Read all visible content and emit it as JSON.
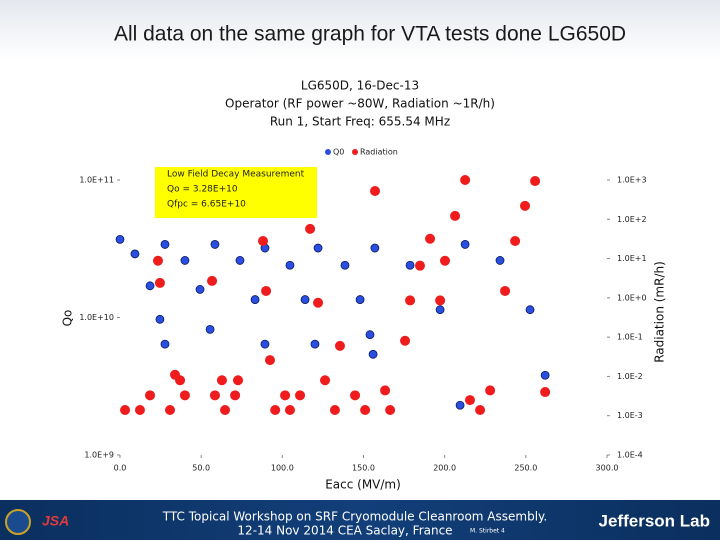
{
  "slide_title": "All data on the same graph for VTA tests done  LG650D",
  "footer": {
    "lines": [
      "TTC Topical Workshop on SRF Cryomodule Cleanroom Assembly.",
      "12-14 Nov 2014 CEA Saclay, France"
    ],
    "author": "M. Stirbet 4",
    "logo": "Jefferson Lab"
  },
  "chart_data": {
    "type": "scatter",
    "title": [
      "LG650D, 16-Dec-13",
      "Operator (RF power ~80W, Radiation ~1R/h)",
      "Run 1, Start Freq: 655.54 MHz"
    ],
    "x_label": "Eacc (MV/m)",
    "y_label": "Qo",
    "y2_label": "Radiation (mR/h)",
    "annotation": [
      "Low Field Decay Measurement",
      "Qo = 3.28E+10",
      "Qfpc = 6.65E+10"
    ],
    "legend": "top",
    "ylog": true,
    "y2log": true,
    "xlim": [
      0,
      300
    ],
    "xticks": [
      {
        "value": 0,
        "label": "0.0"
      },
      {
        "value": 50,
        "label": "50.0"
      },
      {
        "value": 100,
        "label": "100.0"
      },
      {
        "value": 150,
        "label": "150.0"
      },
      {
        "value": 200,
        "label": "200.0"
      },
      {
        "value": 250,
        "label": "250.0"
      },
      {
        "value": 300,
        "label": "300.0"
      }
    ],
    "ylim": [
      1000000000.0,
      100000000000.0
    ],
    "yticks": [
      {
        "value": 1000000000.0,
        "label": "1.0E+9"
      },
      {
        "value": 10000000000.0,
        "label": "1.0E+10"
      },
      {
        "value": 100000000000.0,
        "label": "1.0E+11"
      }
    ],
    "y2lim": [
      0.0001,
      1000
    ],
    "y2ticks": [
      {
        "value": 0.0001,
        "label": "1.0E-4"
      },
      {
        "value": 0.001,
        "label": "1.0E-3"
      },
      {
        "value": 0.01,
        "label": "1.0E-2"
      },
      {
        "value": 0.1,
        "label": "1.0E-1"
      },
      {
        "value": 1,
        "label": "1.0E+0"
      },
      {
        "value": 10,
        "label": "1.0E+1"
      },
      {
        "value": 100,
        "label": "1.0E+2"
      },
      {
        "value": 1000,
        "label": "1.0E+3"
      }
    ],
    "series": [
      {
        "name": "Q0",
        "color": "#2a4fe0",
        "axis": "y",
        "x": [
          0,
          9.2,
          18.5,
          24.6,
          27.7,
          27.7,
          40,
          49.3,
          55.5,
          58.5,
          73.9,
          83.2,
          89.3,
          89.3,
          104.7,
          114,
          120.1,
          122,
          138.6,
          147.9,
          154,
          157,
          178.7,
          197.2,
          209.5,
          212.6,
          234.1,
          252.6,
          261.9,
          155.9
        ],
        "values": [
          37000000000.0,
          29000000000.0,
          17000000000.0,
          9700000000.0,
          6400000000.0,
          34000000000.0,
          26000000000.0,
          16000000000.0,
          8200000000.0,
          34000000000.0,
          26000000000.0,
          13500000000.0,
          6400000000.0,
          32000000000.0,
          24000000000.0,
          13500000000.0,
          6400000000.0,
          32000000000.0,
          24000000000.0,
          13500000000.0,
          7500000000.0,
          32000000000.0,
          24000000000.0,
          11400000000.0,
          2300000000.0,
          34000000000.0,
          26000000000.0,
          11400000000.0,
          3800000000.0,
          5400000000.0
        ]
      },
      {
        "name": "Radiation",
        "color": "#ee1c1c",
        "axis": "y2",
        "x": [
          3.1,
          12.3,
          18.5,
          30.8,
          37,
          40,
          33.9,
          23.4,
          24.6,
          56.7,
          58.5,
          64.7,
          62.8,
          70.9,
          72.7,
          88.1,
          90,
          92.4,
          95.6,
          101.7,
          104.7,
          110.9,
          117.1,
          122,
          126.3,
          132.4,
          135.5,
          144.8,
          151,
          157.1,
          163.3,
          166.4,
          175.6,
          178.7,
          184.8,
          191,
          197.2,
          200.2,
          206.4,
          212.6,
          215.6,
          221.8,
          228,
          237.2,
          243.4,
          249.5,
          255.7,
          261.9
        ],
        "values": [
          0.0014,
          0.0014,
          0.0033,
          0.0014,
          0.008,
          0.0033,
          0.011,
          8.8,
          2.4,
          2.7,
          0.0033,
          0.0014,
          0.008,
          0.0033,
          0.008,
          28,
          1.5,
          0.026,
          0.0014,
          0.0033,
          0.0014,
          0.0033,
          57,
          0.75,
          0.008,
          0.0014,
          0.06,
          0.0033,
          0.0014,
          525,
          0.0044,
          0.0014,
          0.081,
          0.86,
          6.6,
          32,
          0.86,
          8.8,
          122,
          1000,
          0.0025,
          0.0014,
          0.0044,
          1.5,
          28,
          220,
          940,
          0.004
        ]
      }
    ]
  }
}
